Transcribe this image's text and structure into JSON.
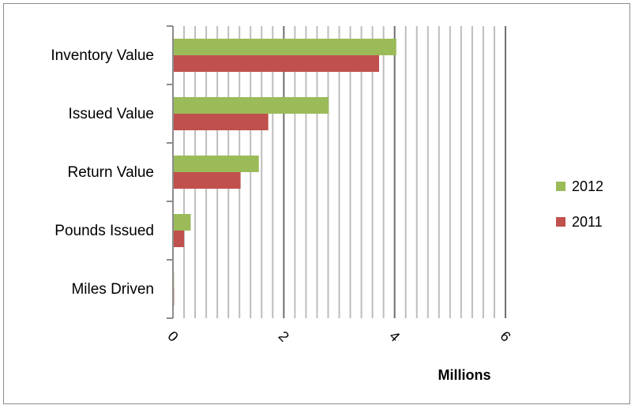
{
  "chart_data": {
    "type": "bar",
    "orientation": "horizontal",
    "categories": [
      "Inventory Value",
      "Issued Value",
      "Return Value",
      "Pounds Issued",
      "Miles Driven"
    ],
    "series": [
      {
        "name": "2012",
        "color": "#9bbb59",
        "values": [
          4.03,
          2.81,
          1.55,
          0.32,
          0.02
        ]
      },
      {
        "name": "2011",
        "color": "#c0504d",
        "values": [
          3.72,
          1.72,
          1.22,
          0.2,
          0.02
        ]
      }
    ],
    "xlim": [
      0,
      6
    ],
    "x_ticks": [
      "0",
      "2",
      "4",
      "6"
    ],
    "xlabel": "Millions",
    "ylabel": "",
    "title": "",
    "grid": true,
    "legend_position": "right"
  }
}
